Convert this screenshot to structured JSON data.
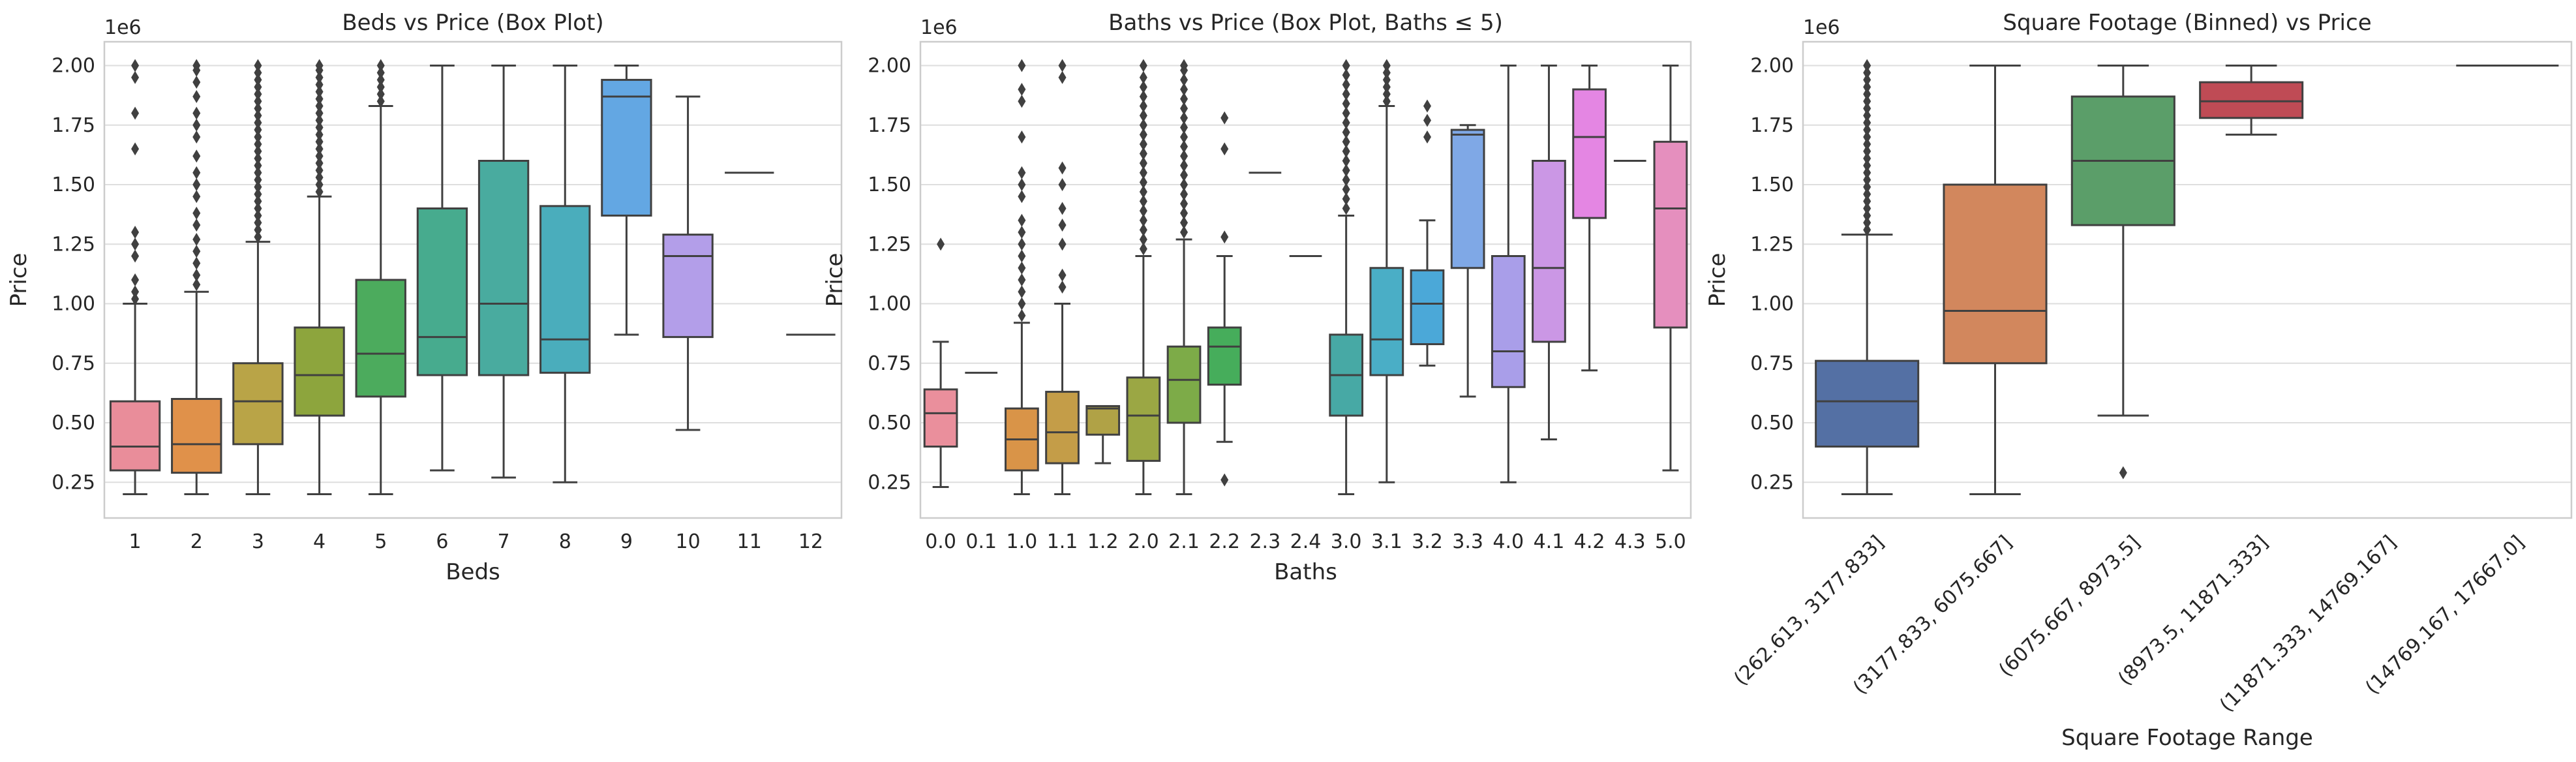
{
  "figure": {
    "background": "#ffffff",
    "axes_facecolor": "#ffffff",
    "spine_color": "#cccccc",
    "grid_color": "#dedede",
    "line_color": "#404040"
  },
  "chart_data": [
    {
      "type": "box",
      "title": "Beds vs Price (Box Plot)",
      "xlabel": "Beds",
      "ylabel": "Price",
      "y_offset_label": "1e6",
      "ylim": [
        0.1,
        2.1
      ],
      "yticks": [
        0.25,
        0.5,
        0.75,
        1.0,
        1.25,
        1.5,
        1.75,
        2.0
      ],
      "ytick_labels": [
        "0.25",
        "0.50",
        "0.75",
        "1.00",
        "1.25",
        "1.50",
        "1.75",
        "2.00"
      ],
      "grid": "horizontal",
      "categories": [
        "1",
        "2",
        "3",
        "4",
        "5",
        "6",
        "7",
        "8",
        "9",
        "10",
        "11",
        "12"
      ],
      "boxes": [
        {
          "min": 0.2,
          "q1": 0.3,
          "median": 0.4,
          "q3": 0.59,
          "max": 1.0,
          "color": "#e98d9a",
          "outliers": [
            1.02,
            1.05,
            1.1,
            1.2,
            1.25,
            1.3,
            1.65,
            1.8,
            1.95,
            2.0
          ]
        },
        {
          "min": 0.2,
          "q1": 0.29,
          "median": 0.41,
          "q3": 0.6,
          "max": 1.05,
          "color": "#e0914a",
          "outliers": [
            1.08,
            1.12,
            1.17,
            1.22,
            1.27,
            1.33,
            1.38,
            1.45,
            1.5,
            1.55,
            1.62,
            1.7,
            1.75,
            1.8,
            1.87,
            1.93,
            1.98,
            2.0
          ]
        },
        {
          "min": 0.2,
          "q1": 0.41,
          "median": 0.59,
          "q3": 0.75,
          "max": 1.26,
          "color": "#b9a447",
          "outliers": [
            1.28,
            1.31,
            1.34,
            1.37,
            1.4,
            1.43,
            1.46,
            1.49,
            1.52,
            1.55,
            1.58,
            1.61,
            1.64,
            1.67,
            1.7,
            1.73,
            1.76,
            1.79,
            1.82,
            1.85,
            1.88,
            1.91,
            1.94,
            1.97,
            2.0
          ]
        },
        {
          "min": 0.2,
          "q1": 0.53,
          "median": 0.7,
          "q3": 0.9,
          "max": 1.45,
          "color": "#8da53d",
          "outliers": [
            1.47,
            1.5,
            1.53,
            1.56,
            1.59,
            1.62,
            1.65,
            1.68,
            1.71,
            1.74,
            1.77,
            1.8,
            1.83,
            1.86,
            1.89,
            1.92,
            1.95,
            1.98,
            2.0
          ]
        },
        {
          "min": 0.2,
          "q1": 0.61,
          "median": 0.79,
          "q3": 1.1,
          "max": 1.83,
          "color": "#4cab5d",
          "outliers": [
            1.85,
            1.88,
            1.91,
            1.94,
            1.97,
            2.0
          ]
        },
        {
          "min": 0.3,
          "q1": 0.7,
          "median": 0.86,
          "q3": 1.4,
          "max": 2.0,
          "color": "#47ab8e",
          "outliers": []
        },
        {
          "min": 0.27,
          "q1": 0.7,
          "median": 1.0,
          "q3": 1.6,
          "max": 2.0,
          "color": "#49ab9f",
          "outliers": []
        },
        {
          "min": 0.25,
          "q1": 0.71,
          "median": 0.85,
          "q3": 1.41,
          "max": 2.0,
          "color": "#4aadbc",
          "outliers": []
        },
        {
          "min": 0.87,
          "q1": 1.37,
          "median": 1.87,
          "q3": 1.94,
          "max": 2.0,
          "color": "#63a7e3",
          "outliers": []
        },
        {
          "min": 0.47,
          "q1": 0.86,
          "median": 1.2,
          "q3": 1.29,
          "max": 1.87,
          "color": "#b39ee9",
          "outliers": []
        },
        {
          "min": 1.55,
          "q1": 1.55,
          "median": 1.55,
          "q3": 1.55,
          "max": 1.55,
          "color": "#e28fdc",
          "outliers": []
        },
        {
          "min": 0.87,
          "q1": 0.87,
          "median": 0.87,
          "q3": 0.87,
          "max": 0.87,
          "color": "#e68fbd",
          "outliers": []
        }
      ]
    },
    {
      "type": "box",
      "title": "Baths vs Price (Box Plot, Baths ≤ 5)",
      "xlabel": "Baths",
      "ylabel": "Price",
      "y_offset_label": "1e6",
      "ylim": [
        0.1,
        2.1
      ],
      "yticks": [
        0.25,
        0.5,
        0.75,
        1.0,
        1.25,
        1.5,
        1.75,
        2.0
      ],
      "ytick_labels": [
        "0.25",
        "0.50",
        "0.75",
        "1.00",
        "1.25",
        "1.50",
        "1.75",
        "2.00"
      ],
      "grid": "horizontal",
      "categories": [
        "0.0",
        "0.1",
        "1.0",
        "1.1",
        "1.2",
        "2.0",
        "2.1",
        "2.2",
        "2.3",
        "2.4",
        "3.0",
        "3.1",
        "3.2",
        "3.3",
        "4.0",
        "4.1",
        "4.2",
        "4.3",
        "5.0"
      ],
      "boxes": [
        {
          "min": 0.23,
          "q1": 0.4,
          "median": 0.54,
          "q3": 0.64,
          "max": 0.84,
          "color": "#ea8f9c",
          "outliers": [
            1.25
          ]
        },
        {
          "min": 0.71,
          "q1": 0.71,
          "median": 0.71,
          "q3": 0.71,
          "max": 0.71,
          "color": "#e39364",
          "outliers": []
        },
        {
          "min": 0.2,
          "q1": 0.3,
          "median": 0.43,
          "q3": 0.56,
          "max": 0.92,
          "color": "#d99448",
          "outliers": [
            0.95,
            1.0,
            1.05,
            1.1,
            1.15,
            1.2,
            1.25,
            1.3,
            1.35,
            1.45,
            1.5,
            1.55,
            1.7,
            1.85,
            1.9,
            2.0
          ]
        },
        {
          "min": 0.2,
          "q1": 0.33,
          "median": 0.46,
          "q3": 0.63,
          "max": 1.0,
          "color": "#c49d48",
          "outliers": [
            1.07,
            1.12,
            1.25,
            1.33,
            1.4,
            1.5,
            1.57,
            1.95,
            2.0
          ]
        },
        {
          "min": 0.33,
          "q1": 0.45,
          "median": 0.56,
          "q3": 0.57,
          "max": 0.57,
          "color": "#b0a246",
          "outliers": []
        },
        {
          "min": 0.2,
          "q1": 0.34,
          "median": 0.53,
          "q3": 0.69,
          "max": 1.2,
          "color": "#9ba744",
          "outliers": [
            1.23,
            1.27,
            1.31,
            1.35,
            1.39,
            1.43,
            1.47,
            1.51,
            1.55,
            1.59,
            1.63,
            1.67,
            1.71,
            1.75,
            1.79,
            1.83,
            1.87,
            1.91,
            1.95,
            2.0
          ]
        },
        {
          "min": 0.2,
          "q1": 0.5,
          "median": 0.68,
          "q3": 0.82,
          "max": 1.27,
          "color": "#7dab48",
          "outliers": [
            1.3,
            1.34,
            1.38,
            1.42,
            1.46,
            1.5,
            1.54,
            1.58,
            1.62,
            1.66,
            1.7,
            1.74,
            1.78,
            1.82,
            1.86,
            1.9,
            1.94,
            1.98,
            2.0
          ]
        },
        {
          "min": 0.42,
          "q1": 0.66,
          "median": 0.82,
          "q3": 0.9,
          "max": 1.2,
          "color": "#46ad5b",
          "outliers": [
            0.26,
            1.28,
            1.65,
            1.78
          ]
        },
        {
          "min": 1.55,
          "q1": 1.55,
          "median": 1.55,
          "q3": 1.55,
          "max": 1.55,
          "color": "#48ab80",
          "outliers": []
        },
        {
          "min": 1.2,
          "q1": 1.2,
          "median": 1.2,
          "q3": 1.2,
          "max": 1.2,
          "color": "#49ab91",
          "outliers": []
        },
        {
          "min": 0.2,
          "q1": 0.53,
          "median": 0.7,
          "q3": 0.87,
          "max": 1.37,
          "color": "#47a9a5",
          "outliers": [
            1.4,
            1.44,
            1.48,
            1.52,
            1.56,
            1.6,
            1.64,
            1.68,
            1.72,
            1.76,
            1.8,
            1.84,
            1.88,
            1.92,
            1.96,
            2.0
          ]
        },
        {
          "min": 0.25,
          "q1": 0.7,
          "median": 0.85,
          "q3": 1.15,
          "max": 1.83,
          "color": "#4aaec6",
          "outliers": [
            1.85,
            1.88,
            1.91,
            1.94,
            1.97,
            2.0
          ]
        },
        {
          "min": 0.74,
          "q1": 0.83,
          "median": 1.0,
          "q3": 1.14,
          "max": 1.35,
          "color": "#4ba8d8",
          "outliers": [
            1.7,
            1.77,
            1.83
          ]
        },
        {
          "min": 0.61,
          "q1": 1.15,
          "median": 1.71,
          "q3": 1.73,
          "max": 1.75,
          "color": "#7fa8e6",
          "outliers": []
        },
        {
          "min": 0.25,
          "q1": 0.65,
          "median": 0.8,
          "q3": 1.2,
          "max": 2.0,
          "color": "#a99ee9",
          "outliers": []
        },
        {
          "min": 0.43,
          "q1": 0.84,
          "median": 1.15,
          "q3": 1.6,
          "max": 2.0,
          "color": "#cb97e5",
          "outliers": []
        },
        {
          "min": 0.72,
          "q1": 1.36,
          "median": 1.7,
          "q3": 1.9,
          "max": 2.0,
          "color": "#e486e3",
          "outliers": []
        },
        {
          "min": 1.6,
          "q1": 1.6,
          "median": 1.6,
          "q3": 1.6,
          "max": 1.6,
          "color": "#e48fce",
          "outliers": []
        },
        {
          "min": 0.3,
          "q1": 0.9,
          "median": 1.4,
          "q3": 1.68,
          "max": 2.0,
          "color": "#e58fbe",
          "outliers": []
        }
      ]
    },
    {
      "type": "box",
      "title": "Square Footage (Binned) vs Price",
      "xlabel": "Square Footage Range",
      "ylabel": "Price",
      "y_offset_label": "1e6",
      "ylim": [
        0.1,
        2.1
      ],
      "yticks": [
        0.25,
        0.5,
        0.75,
        1.0,
        1.25,
        1.5,
        1.75,
        2.0
      ],
      "ytick_labels": [
        "0.25",
        "0.50",
        "0.75",
        "1.00",
        "1.25",
        "1.50",
        "1.75",
        "2.00"
      ],
      "grid": "horizontal",
      "categories": [
        "(262.613, 3177.833]",
        "(3177.833, 6075.667]",
        "(6075.667, 8973.5]",
        "(8973.5, 11871.333]",
        "(11871.333, 14769.167]",
        "(14769.167, 17667.0]"
      ],
      "boxes": [
        {
          "min": 0.2,
          "q1": 0.4,
          "median": 0.59,
          "q3": 0.76,
          "max": 1.29,
          "color": "#5470a4",
          "outliers": [
            1.31,
            1.34,
            1.37,
            1.4,
            1.43,
            1.46,
            1.49,
            1.52,
            1.55,
            1.58,
            1.61,
            1.64,
            1.67,
            1.7,
            1.73,
            1.76,
            1.79,
            1.82,
            1.85,
            1.88,
            1.91,
            1.94,
            1.97,
            2.0
          ]
        },
        {
          "min": 0.2,
          "q1": 0.75,
          "median": 0.97,
          "q3": 1.5,
          "max": 2.0,
          "color": "#d2875d",
          "outliers": []
        },
        {
          "min": 0.53,
          "q1": 1.33,
          "median": 1.6,
          "q3": 1.87,
          "max": 2.0,
          "color": "#5b9e69",
          "outliers": [
            0.29
          ]
        },
        {
          "min": 1.71,
          "q1": 1.78,
          "median": 1.85,
          "q3": 1.93,
          "max": 2.0,
          "color": "#bf4b55",
          "outliers": []
        },
        {
          "min": null,
          "q1": null,
          "median": null,
          "q3": null,
          "max": null,
          "color": "#8172b2",
          "outliers": []
        },
        {
          "min": 2.0,
          "q1": 2.0,
          "median": 2.0,
          "q3": 2.0,
          "max": 2.0,
          "color": "#937860",
          "outliers": []
        }
      ]
    }
  ]
}
